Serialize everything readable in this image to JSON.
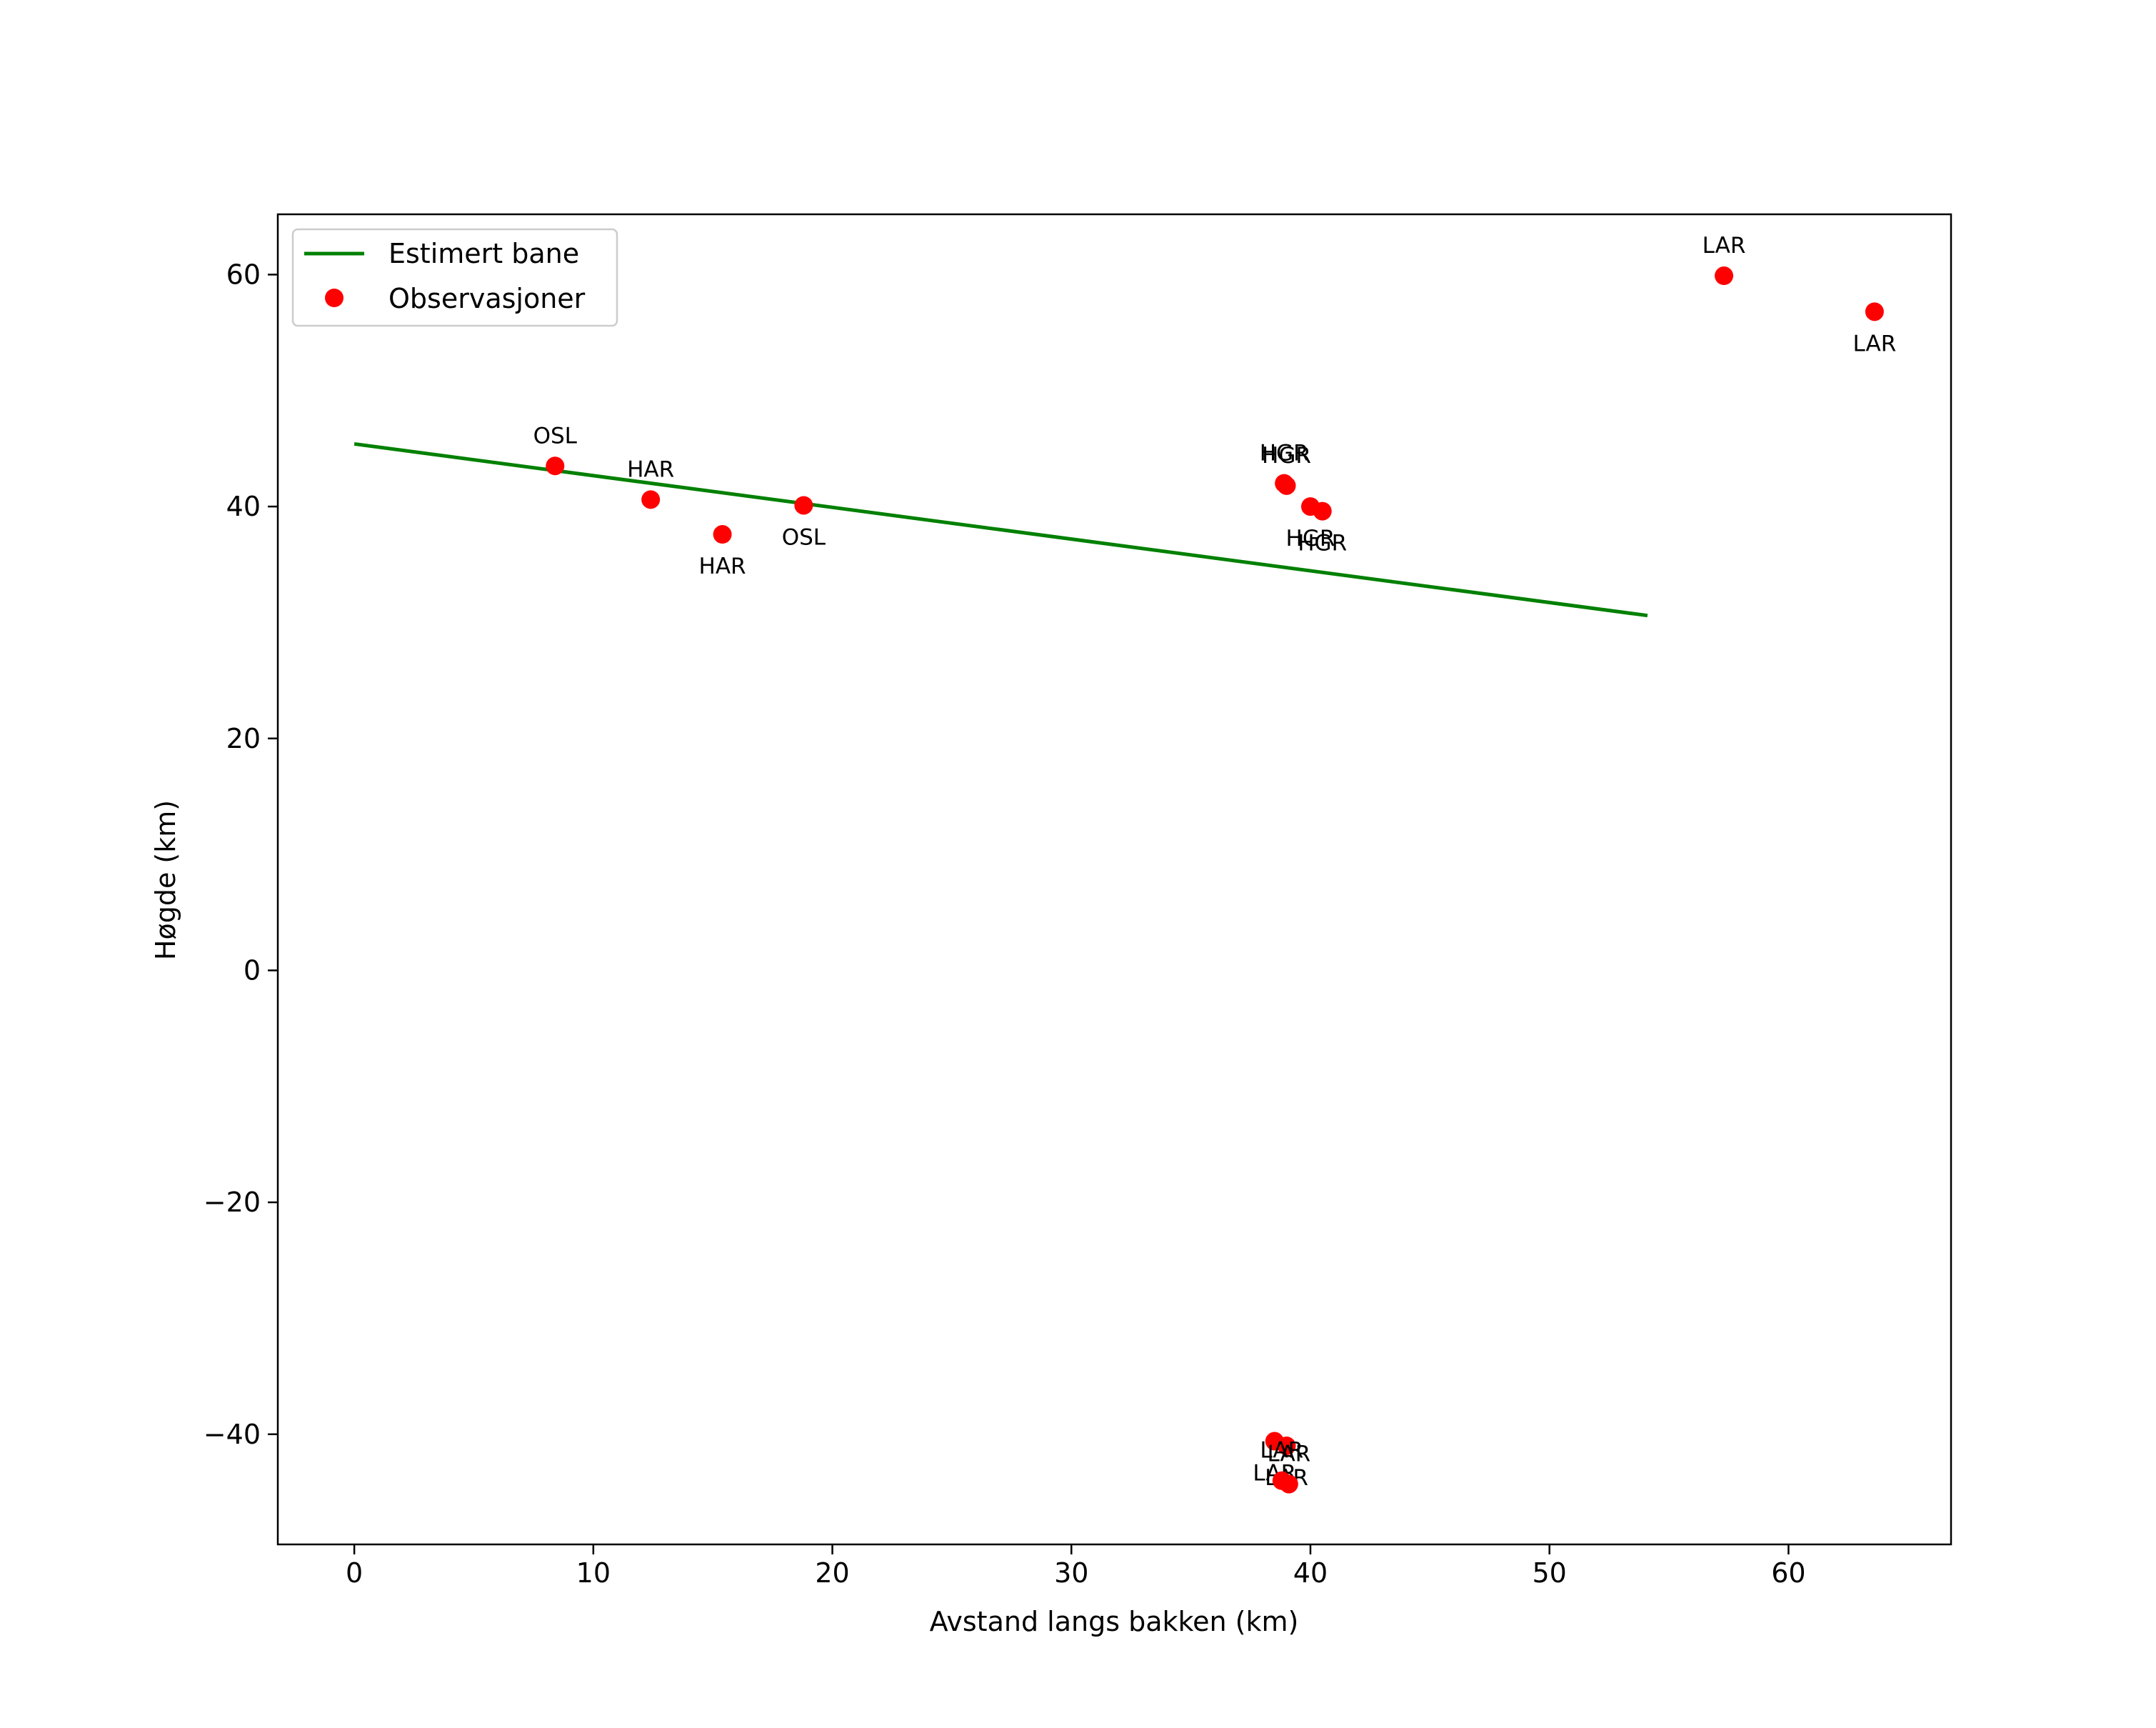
{
  "colors": {
    "line": "#008000",
    "points": "#ff0000",
    "axes": "#000000",
    "background": "#ffffff"
  },
  "chart_data": {
    "type": "scatter",
    "title": "",
    "xlabel": "Avstand langs bakken (km)",
    "ylabel": "Høgde (km)",
    "xlim": [
      -3.2,
      66.8
    ],
    "ylim": [
      -49.5,
      65.2
    ],
    "xticks": [
      0,
      10,
      20,
      30,
      40,
      50,
      60
    ],
    "yticks": [
      -40,
      -20,
      0,
      20,
      40,
      60
    ],
    "ytick_labels": [
      "−40",
      "−20",
      "0",
      "20",
      "40",
      "60"
    ],
    "grid": false,
    "legend": {
      "placement": "upper-left",
      "entries": [
        {
          "label": "Estimert bane",
          "kind": "line"
        },
        {
          "label": "Observasjoner",
          "kind": "marker"
        }
      ]
    },
    "series": [
      {
        "name": "Estimert bane",
        "kind": "line",
        "points": [
          [
            0,
            45.4
          ],
          [
            54.1,
            30.6
          ]
        ]
      },
      {
        "name": "Observasjoner",
        "kind": "scatter",
        "points": [
          {
            "x": 8.4,
            "y": 43.5,
            "label": "OSL",
            "label_pos": "above"
          },
          {
            "x": 12.4,
            "y": 40.6,
            "label": "HAR",
            "label_pos": "above"
          },
          {
            "x": 15.4,
            "y": 37.6,
            "label": "HAR",
            "label_pos": "below"
          },
          {
            "x": 18.8,
            "y": 40.1,
            "label": "OSL",
            "label_pos": "below"
          },
          {
            "x": 38.9,
            "y": 42.0,
            "label": "HGR",
            "label_pos": "above"
          },
          {
            "x": 39.0,
            "y": 41.8,
            "label": "HGR",
            "label_pos": "above"
          },
          {
            "x": 40.0,
            "y": 40.0,
            "label": "HGR",
            "label_pos": "below"
          },
          {
            "x": 40.5,
            "y": 39.6,
            "label": "HGR",
            "label_pos": "below"
          },
          {
            "x": 57.3,
            "y": 59.9,
            "label": "LAR",
            "label_pos": "above"
          },
          {
            "x": 63.6,
            "y": 56.8,
            "label": "LAR",
            "label_pos": "below"
          },
          {
            "x": 38.5,
            "y": -40.6,
            "label": "LAR",
            "label_pos": "below"
          },
          {
            "x": 39.0,
            "y": -41.0,
            "label": "LAR",
            "label_pos": "below"
          },
          {
            "x": 38.8,
            "y": -44.0,
            "label": "LAR",
            "label_pos": "above"
          },
          {
            "x": 39.1,
            "y": -44.3,
            "label": "LAR",
            "label_pos": "above"
          }
        ]
      }
    ]
  }
}
